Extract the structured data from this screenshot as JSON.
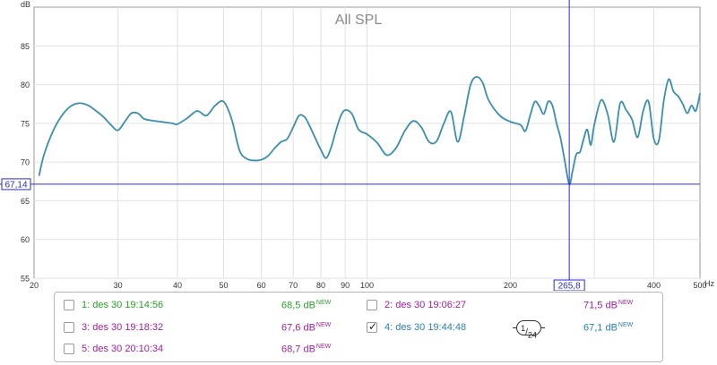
{
  "chart_data": {
    "type": "line",
    "title": "All SPL",
    "ylabel": "dB",
    "xunit": "Hz",
    "xscale": "log",
    "xlim": [
      20,
      500
    ],
    "ylim": [
      55,
      90
    ],
    "grid": true,
    "legend": "bottom",
    "x_ticks": [
      20,
      30,
      40,
      50,
      60,
      70,
      80,
      90,
      100,
      200,
      300,
      400,
      500
    ],
    "x_tick_labels": [
      "20",
      "30",
      "40",
      "50",
      "60",
      "70",
      "80",
      "90",
      "100",
      "200",
      "",
      "400",
      "500"
    ],
    "y_ticks": [
      55,
      60,
      65,
      70,
      75,
      80,
      85
    ],
    "cursor": {
      "x": 265.8,
      "y": 67.14,
      "x_label": "265,8",
      "y_label": "67,14"
    },
    "series": [
      {
        "color": "#3a8eb0",
        "x": [
          20.5,
          21,
          22,
          23,
          24,
          25,
          26,
          27,
          28,
          29,
          30,
          31,
          32,
          33,
          34,
          35,
          37,
          39,
          40,
          42,
          44,
          46,
          48,
          50,
          52,
          54,
          56,
          58,
          60,
          62,
          64,
          66,
          68,
          70,
          72,
          74,
          76,
          78,
          80,
          82,
          84,
          86,
          88,
          90,
          93,
          96,
          100,
          105,
          110,
          115,
          120,
          125,
          130,
          135,
          140,
          145,
          150,
          155,
          160,
          165,
          170,
          175,
          180,
          190,
          200,
          210,
          215,
          220,
          225,
          230,
          235,
          240,
          245,
          250,
          255,
          260,
          265.8,
          270,
          275,
          280,
          285,
          290,
          295,
          300,
          310,
          320,
          330,
          340,
          350,
          360,
          370,
          380,
          390,
          400,
          410,
          420,
          430,
          440,
          450,
          460,
          470,
          480,
          490,
          500
        ],
        "y": [
          68.3,
          71.0,
          74.2,
          76.2,
          77.3,
          77.6,
          77.3,
          76.6,
          75.8,
          74.8,
          74.1,
          75.2,
          76.3,
          76.3,
          75.6,
          75.4,
          75.2,
          75.0,
          74.9,
          75.7,
          76.6,
          76.0,
          77.3,
          77.8,
          75.5,
          71.5,
          70.4,
          70.2,
          70.3,
          70.8,
          71.8,
          72.6,
          73.0,
          74.5,
          76.0,
          75.8,
          74.5,
          73.0,
          71.6,
          70.5,
          71.8,
          74.0,
          75.9,
          76.7,
          76.2,
          74.2,
          73.6,
          72.5,
          70.9,
          71.8,
          74.0,
          75.3,
          74.5,
          72.6,
          72.7,
          75.0,
          76.5,
          72.6,
          76.0,
          80.0,
          81.0,
          80.2,
          78.0,
          76.0,
          75.2,
          74.8,
          74.0,
          76.0,
          77.8,
          77.2,
          76.2,
          77.8,
          77.3,
          75.0,
          73.0,
          70.2,
          67.14,
          68.8,
          71.0,
          71.3,
          73.0,
          74.2,
          72.2,
          74.8,
          78.0,
          76.2,
          72.6,
          77.6,
          76.7,
          75.5,
          73.2,
          76.6,
          77.8,
          73.0,
          72.8,
          78.0,
          80.7,
          79.1,
          78.5,
          77.5,
          76.3,
          77.3,
          76.6,
          78.8
        ]
      }
    ]
  },
  "legend": {
    "tag": "NEW",
    "smoothing": {
      "num": "1",
      "den": "24"
    },
    "entries": [
      {
        "label": "1: des 30 19:14:56",
        "value": "68,5 dB",
        "checked": false,
        "color": "#2aa02a"
      },
      {
        "label": "2: des 30 19:06:27",
        "value": "71,5 dB",
        "checked": false,
        "color": "#a020a0"
      },
      {
        "label": "3: des 30 19:18:32",
        "value": "67,6 dB",
        "checked": false,
        "color": "#a020a0"
      },
      {
        "label": "4: des 30 19:44:48",
        "value": "67,1 dB",
        "checked": true,
        "color": "#2a7fb0"
      },
      {
        "label": "5: des 30 20:10:34",
        "value": "68,7 dB",
        "checked": false,
        "color": "#a020a0"
      }
    ]
  }
}
